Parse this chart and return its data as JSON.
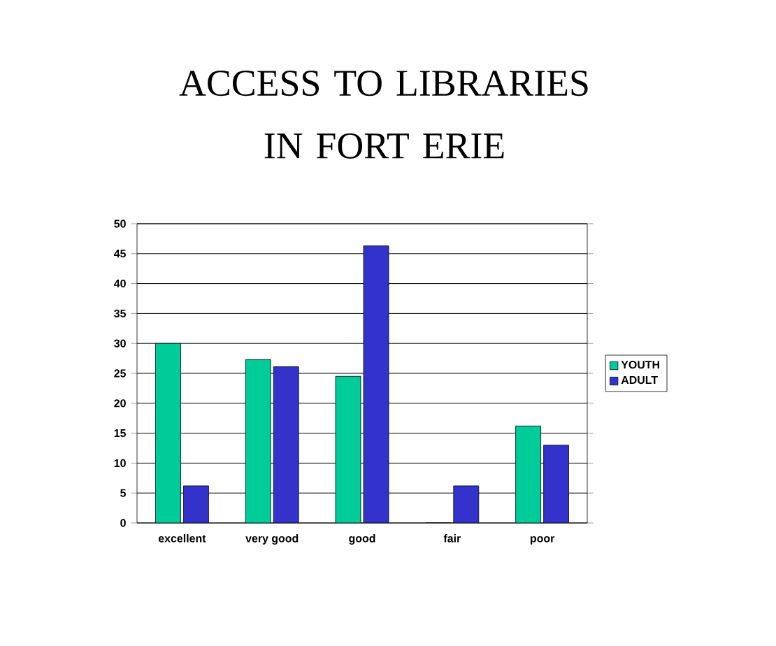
{
  "chart_data": {
    "type": "bar",
    "title": "ACCESS TO LIBRARIES IN FORT ERIE",
    "categories": [
      "excellent",
      "very good",
      "good",
      "fair",
      "poor"
    ],
    "series": [
      {
        "name": "YOUTH",
        "color": "#00cc99",
        "values": [
          30,
          27.3,
          24.5,
          0,
          16.2
        ]
      },
      {
        "name": "ADULT",
        "color": "#3333cc",
        "values": [
          6.2,
          26.1,
          46.3,
          6.2,
          13
        ]
      }
    ],
    "ylim": [
      0,
      50
    ],
    "yticks": [
      0,
      5,
      10,
      15,
      20,
      25,
      30,
      35,
      40,
      45,
      50
    ],
    "grid": "y",
    "legend": "right"
  }
}
